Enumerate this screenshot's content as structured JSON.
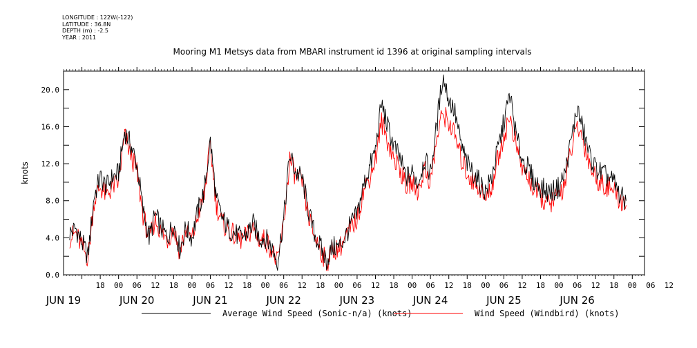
{
  "metadata": [
    {
      "key": "LONGITUDE",
      "value": "122W(-122)"
    },
    {
      "key": "LATITUDE",
      "value": "36.8N"
    },
    {
      "key": "DEPTH (m)",
      "value": "-2.5"
    },
    {
      "key": "YEAR",
      "value": "2011"
    }
  ],
  "chart_data": {
    "type": "line",
    "title": "Mooring M1 Metsys data from MBARI instrument id 1396 at original sampling intervals",
    "xlabel": "",
    "ylabel": "knots",
    "ylim": [
      0,
      22
    ],
    "y_ticks": [
      "0.0",
      "4.0",
      "8.0",
      "12.0",
      "16.0",
      "20.0"
    ],
    "x_hour_ticks": [
      "18",
      "00",
      "06",
      "12",
      "18",
      "00",
      "06",
      "12",
      "18",
      "00",
      "06",
      "12",
      "18",
      "00",
      "06",
      "12",
      "18",
      "00",
      "06",
      "12",
      "18",
      "00",
      "06",
      "12",
      "18",
      "00",
      "06",
      "12",
      "18",
      "00",
      "06",
      "12"
    ],
    "x_day_labels": [
      "JUN 19",
      "JUN 20",
      "JUN 21",
      "JUN 22",
      "JUN 23",
      "JUN 24",
      "JUN 25",
      "JUN 26"
    ],
    "grid": false,
    "legend_position": "bottom",
    "x_unit": "hours since 2011-06-19 00:00",
    "series": [
      {
        "name": "Average Wind Speed (Sonic-n/a) (knots)",
        "color": "#000000",
        "x": [
          8,
          10,
          12,
          14,
          16,
          18,
          20,
          22,
          24,
          26,
          28,
          30,
          32,
          34,
          36,
          38,
          40,
          42,
          44,
          46,
          48,
          50,
          52,
          54,
          56,
          58,
          60,
          62,
          64,
          66,
          68,
          70,
          72,
          74,
          76,
          78,
          80,
          82,
          84,
          86,
          88,
          90,
          92,
          94,
          96,
          98,
          100,
          102,
          104,
          106,
          108,
          110,
          112,
          114,
          116,
          118,
          120,
          122,
          124,
          126,
          128,
          130,
          132,
          134,
          136,
          138,
          140,
          142,
          144,
          146,
          148,
          150,
          152,
          154,
          156,
          158,
          160,
          162,
          164,
          166,
          168,
          170,
          172,
          174,
          176,
          178,
          180,
          182,
          184,
          186,
          188,
          190
        ],
        "y": [
          4.5,
          5.0,
          3.5,
          2.0,
          8.5,
          10.5,
          9.5,
          10.5,
          11.0,
          15.5,
          14.0,
          12.0,
          7.0,
          4.0,
          6.5,
          5.0,
          4.0,
          5.5,
          2.8,
          5.0,
          4.0,
          7.0,
          9.0,
          14.5,
          8.0,
          6.0,
          5.0,
          4.5,
          4.0,
          4.5,
          5.5,
          4.0,
          4.0,
          3.0,
          1.5,
          6.0,
          13.0,
          11.0,
          10.5,
          7.0,
          4.5,
          3.0,
          1.5,
          3.0,
          3.0,
          4.0,
          5.5,
          6.5,
          9.5,
          11.5,
          13.5,
          18.5,
          16.0,
          14.0,
          12.5,
          10.5,
          11.0,
          10.0,
          12.5,
          11.0,
          16.0,
          21.5,
          19.0,
          17.5,
          14.0,
          12.0,
          11.0,
          10.0,
          9.0,
          10.5,
          13.5,
          16.5,
          19.5,
          15.0,
          12.5,
          11.5,
          10.0,
          9.5,
          9.0,
          9.0,
          9.5,
          11.0,
          14.5,
          18.0,
          15.5,
          13.0,
          11.5,
          11.0,
          10.5,
          10.0,
          8.5,
          8.0
        ]
      },
      {
        "name": "Wind Speed (Windbird) (knots)",
        "color": "#ff0000",
        "x": [
          8,
          10,
          12,
          14,
          16,
          18,
          20,
          22,
          24,
          26,
          28,
          30,
          32,
          34,
          36,
          38,
          40,
          42,
          44,
          46,
          48,
          50,
          52,
          54,
          56,
          58,
          60,
          62,
          64,
          66,
          68,
          70,
          72,
          74,
          76,
          78,
          80,
          82,
          84,
          86,
          88,
          90,
          92,
          94,
          96,
          98,
          100,
          102,
          104,
          106,
          108,
          110,
          112,
          114,
          116,
          118,
          120,
          122,
          124,
          126,
          128,
          130,
          132,
          134,
          136,
          138,
          140,
          142,
          144,
          146,
          148,
          150,
          152,
          154,
          156,
          158,
          160,
          162,
          164,
          166,
          168,
          170,
          172,
          174,
          176,
          178,
          180,
          182,
          184,
          186,
          188,
          190
        ],
        "y": [
          4.0,
          4.5,
          3.0,
          1.8,
          8.0,
          9.5,
          8.5,
          9.5,
          10.0,
          15.0,
          13.0,
          11.0,
          6.5,
          3.8,
          6.0,
          4.5,
          3.8,
          5.0,
          2.5,
          4.8,
          3.8,
          6.5,
          8.5,
          14.0,
          7.5,
          5.5,
          4.8,
          4.2,
          3.8,
          4.2,
          5.0,
          3.8,
          3.8,
          2.8,
          1.2,
          5.5,
          12.5,
          10.5,
          10.0,
          6.5,
          4.2,
          2.8,
          1.2,
          2.8,
          2.8,
          3.8,
          5.0,
          6.0,
          9.0,
          10.5,
          12.5,
          16.5,
          14.5,
          12.5,
          11.5,
          9.5,
          10.0,
          9.0,
          11.5,
          10.0,
          14.5,
          17.5,
          16.5,
          15.0,
          12.5,
          11.0,
          10.0,
          9.5,
          8.0,
          9.5,
          12.5,
          15.0,
          17.0,
          14.0,
          11.5,
          10.5,
          9.0,
          8.5,
          7.5,
          8.0,
          8.5,
          10.0,
          13.5,
          16.0,
          14.5,
          12.0,
          10.5,
          10.0,
          9.5,
          9.0,
          8.0,
          7.5
        ]
      }
    ]
  }
}
